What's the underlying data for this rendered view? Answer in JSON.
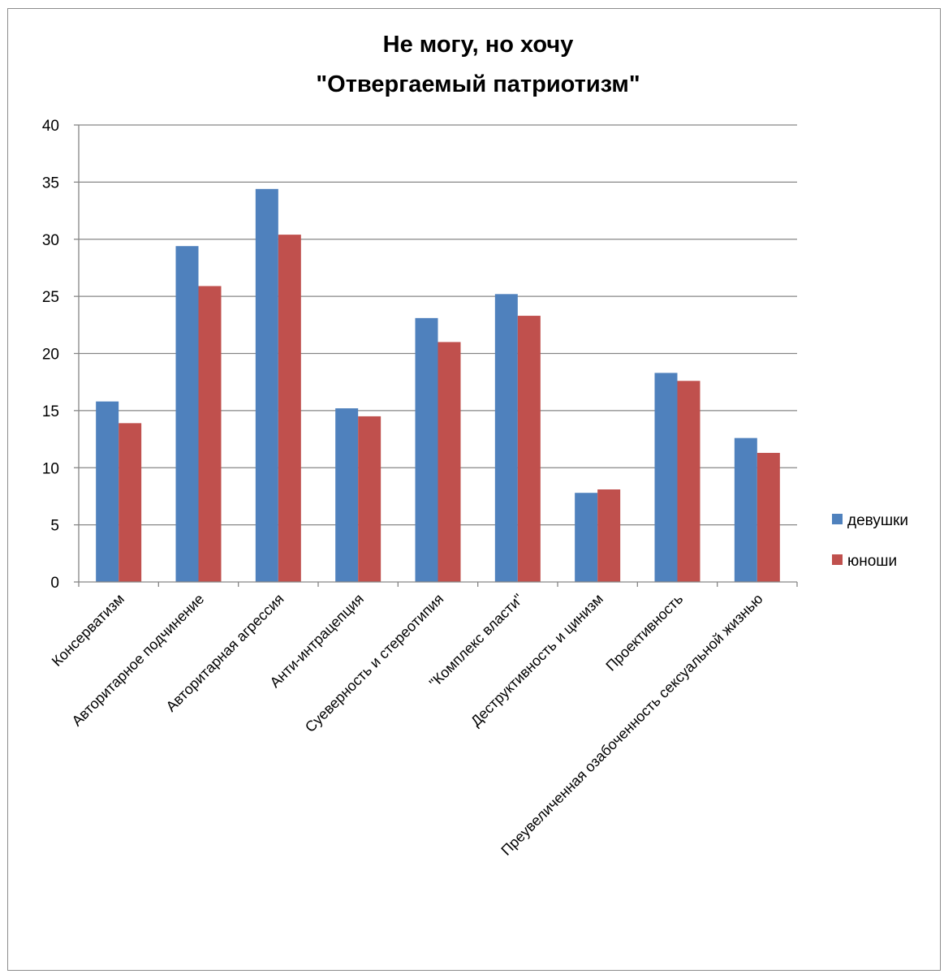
{
  "chart_data": {
    "type": "bar",
    "title": [
      "Не могу, но хочу",
      "\"Отвергаемый патриотизм\""
    ],
    "xlabel": "",
    "ylabel": "",
    "ylim": [
      0,
      40
    ],
    "yticks": [
      0,
      5,
      10,
      15,
      20,
      25,
      30,
      35,
      40
    ],
    "grid": true,
    "legend_position": "right",
    "categories": [
      "Консерватизм",
      "Авторитарное подчинение",
      "Авторитарная агрессия",
      "Анти-интрацепция",
      "Суеверность и стереотипия",
      "\"Комплекс власти\"",
      "Деструктивность и цинизм",
      "Проективность",
      "Преувеличенная озабоченность сексуальной жизнью"
    ],
    "series": [
      {
        "name": "девушки",
        "color": "#4f81bd",
        "values": [
          15.8,
          29.4,
          34.4,
          15.2,
          23.1,
          25.2,
          7.8,
          18.3,
          12.6
        ]
      },
      {
        "name": "юноши",
        "color": "#c0504d",
        "values": [
          13.9,
          25.9,
          30.4,
          14.5,
          21.0,
          23.3,
          8.1,
          17.6,
          11.3
        ]
      }
    ]
  }
}
